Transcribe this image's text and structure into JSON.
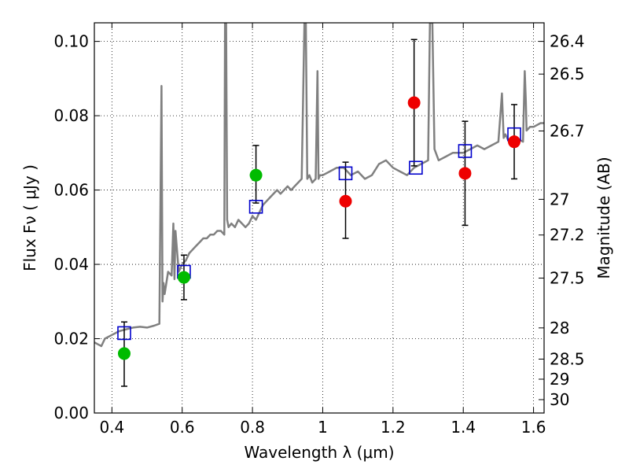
{
  "chart_data": {
    "type": "scatter",
    "xlabel": "Wavelength  λ (μm)",
    "ylabel": "Flux  Fν  ( μJy )",
    "y2label": "Magnitude (AB)",
    "xlim": [
      0.35,
      1.63
    ],
    "ylim": [
      0.0,
      0.105
    ],
    "grid": true,
    "x_ticks": [
      0.4,
      0.6,
      0.8,
      1.0,
      1.2,
      1.4,
      1.6
    ],
    "x_tick_labels": [
      "0.4",
      "0.6",
      "0.8",
      "1",
      "1.2",
      "1.4",
      "1.6"
    ],
    "y_ticks": [
      0.0,
      0.02,
      0.04,
      0.06,
      0.08,
      0.1
    ],
    "y_tick_labels": [
      "0.00",
      "0.02",
      "0.04",
      "0.06",
      "0.08",
      "0.10"
    ],
    "y2_ticks": [
      {
        "label": "26.4",
        "flux": 0.1
      },
      {
        "label": "26.5",
        "flux": 0.0912
      },
      {
        "label": "26.7",
        "flux": 0.0759
      },
      {
        "label": "27",
        "flux": 0.0575
      },
      {
        "label": "27.2",
        "flux": 0.0479
      },
      {
        "label": "27.5",
        "flux": 0.0363
      },
      {
        "label": "28",
        "flux": 0.0229
      },
      {
        "label": "28.5",
        "flux": 0.0145
      },
      {
        "label": "29",
        "flux": 0.0091
      },
      {
        "label": "30",
        "flux": 0.0036
      }
    ],
    "model_spectrum": {
      "color": "#808080",
      "x": [
        0.35,
        0.37,
        0.38,
        0.4,
        0.42,
        0.44,
        0.46,
        0.48,
        0.5,
        0.52,
        0.535,
        0.541,
        0.544,
        0.547,
        0.55,
        0.56,
        0.57,
        0.575,
        0.578,
        0.581,
        0.59,
        0.6,
        0.61,
        0.62,
        0.63,
        0.64,
        0.65,
        0.66,
        0.67,
        0.68,
        0.69,
        0.7,
        0.71,
        0.72,
        0.722,
        0.725,
        0.728,
        0.732,
        0.74,
        0.75,
        0.76,
        0.77,
        0.78,
        0.79,
        0.8,
        0.81,
        0.82,
        0.83,
        0.84,
        0.85,
        0.86,
        0.87,
        0.88,
        0.89,
        0.9,
        0.91,
        0.92,
        0.93,
        0.94,
        0.948,
        0.952,
        0.956,
        0.962,
        0.97,
        0.98,
        0.985,
        0.988,
        0.992,
        1.0,
        1.02,
        1.04,
        1.06,
        1.08,
        1.1,
        1.12,
        1.14,
        1.16,
        1.18,
        1.2,
        1.22,
        1.24,
        1.26,
        1.28,
        1.3,
        1.305,
        1.312,
        1.318,
        1.33,
        1.35,
        1.37,
        1.4,
        1.42,
        1.44,
        1.46,
        1.48,
        1.5,
        1.51,
        1.515,
        1.52,
        1.53,
        1.55,
        1.57,
        1.575,
        1.578,
        1.58,
        1.59,
        1.6,
        1.62,
        1.63
      ],
      "y": [
        0.019,
        0.018,
        0.02,
        0.021,
        0.022,
        0.0225,
        0.023,
        0.0232,
        0.023,
        0.0235,
        0.024,
        0.088,
        0.03,
        0.035,
        0.032,
        0.038,
        0.037,
        0.051,
        0.036,
        0.049,
        0.038,
        0.04,
        0.041,
        0.043,
        0.044,
        0.045,
        0.046,
        0.047,
        0.047,
        0.048,
        0.048,
        0.049,
        0.049,
        0.048,
        0.105,
        0.105,
        0.052,
        0.05,
        0.051,
        0.05,
        0.052,
        0.051,
        0.05,
        0.051,
        0.053,
        0.052,
        0.054,
        0.056,
        0.057,
        0.058,
        0.059,
        0.06,
        0.059,
        0.06,
        0.061,
        0.06,
        0.061,
        0.062,
        0.063,
        0.105,
        0.105,
        0.063,
        0.064,
        0.062,
        0.063,
        0.092,
        0.063,
        0.064,
        0.064,
        0.065,
        0.066,
        0.066,
        0.064,
        0.065,
        0.063,
        0.064,
        0.067,
        0.068,
        0.066,
        0.065,
        0.064,
        0.066,
        0.067,
        0.068,
        0.105,
        0.105,
        0.071,
        0.068,
        0.069,
        0.07,
        0.07,
        0.071,
        0.072,
        0.071,
        0.072,
        0.073,
        0.086,
        0.074,
        0.075,
        0.073,
        0.074,
        0.073,
        0.092,
        0.084,
        0.076,
        0.077,
        0.077,
        0.078,
        0.078
      ]
    },
    "series": [
      {
        "marker": "open-square",
        "color": "#0000cc",
        "x": [
          0.435,
          0.605,
          0.81,
          1.065,
          1.265,
          1.405,
          1.545
        ],
        "y": [
          0.0215,
          0.038,
          0.0555,
          0.0645,
          0.066,
          0.0705,
          0.075
        ]
      },
      {
        "marker": "filled-circle",
        "color": "#00bb00",
        "x": [
          0.435,
          0.605,
          0.81
        ],
        "y": [
          0.016,
          0.0365,
          0.064
        ]
      },
      {
        "marker": "filled-circle",
        "color": "#ee0000",
        "x": [
          1.065,
          1.26,
          1.405,
          1.545
        ],
        "y": [
          0.057,
          0.0835,
          0.0645,
          0.073
        ]
      }
    ],
    "error_bars": [
      {
        "x": 0.435,
        "low": 0.0072,
        "high": 0.0245
      },
      {
        "x": 0.605,
        "low": 0.0305,
        "high": 0.0425
      },
      {
        "x": 0.81,
        "low": 0.0565,
        "high": 0.072
      },
      {
        "x": 1.065,
        "low": 0.047,
        "high": 0.0675
      },
      {
        "x": 1.26,
        "low": 0.0665,
        "high": 0.1005
      },
      {
        "x": 1.405,
        "low": 0.0505,
        "high": 0.0785
      },
      {
        "x": 1.545,
        "low": 0.063,
        "high": 0.083
      }
    ]
  }
}
